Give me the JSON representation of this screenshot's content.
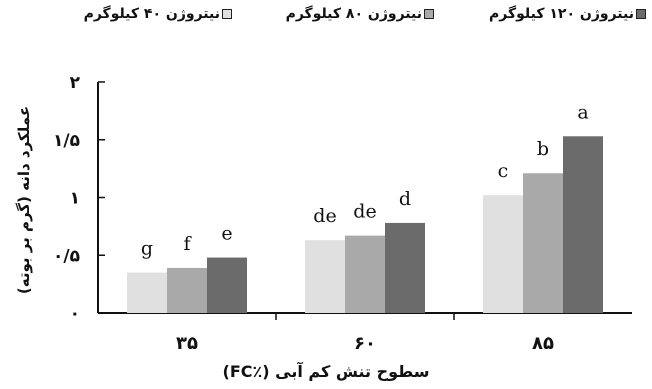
{
  "chart_data": {
    "type": "bar",
    "categories": [
      "۳۵",
      "۶۰",
      "۸۵"
    ],
    "series": [
      {
        "name": "نیتروژن ۴۰ کیلوگرم",
        "color": "#e0e0e0",
        "values": [
          0.35,
          0.63,
          1.02
        ],
        "labels": [
          "g",
          "de",
          "c"
        ]
      },
      {
        "name": "نیتروژن ۸۰ کیلوگرم",
        "color": "#a9a9a9",
        "values": [
          0.39,
          0.67,
          1.21
        ],
        "labels": [
          "f",
          "de",
          "b"
        ]
      },
      {
        "name": "نیتروژن ۱۲۰ کیلوگرم",
        "color": "#6b6b6b",
        "values": [
          0.48,
          0.78,
          1.53
        ],
        "labels": [
          "e",
          "d",
          "a"
        ]
      }
    ],
    "yticks": [
      {
        "value": 0,
        "label": "۰"
      },
      {
        "value": 0.5,
        "label": "۰/۵"
      },
      {
        "value": 1,
        "label": "۱"
      },
      {
        "value": 1.5,
        "label": "۱/۵"
      },
      {
        "value": 2,
        "label": "۲"
      }
    ],
    "ylim": [
      0,
      2
    ],
    "ylabel": "عملکرد دانه (گرم بر بوته)",
    "xlabel": "سطوح تنش کم آبی (٪FC)",
    "grid": false,
    "legend_position": "top"
  }
}
